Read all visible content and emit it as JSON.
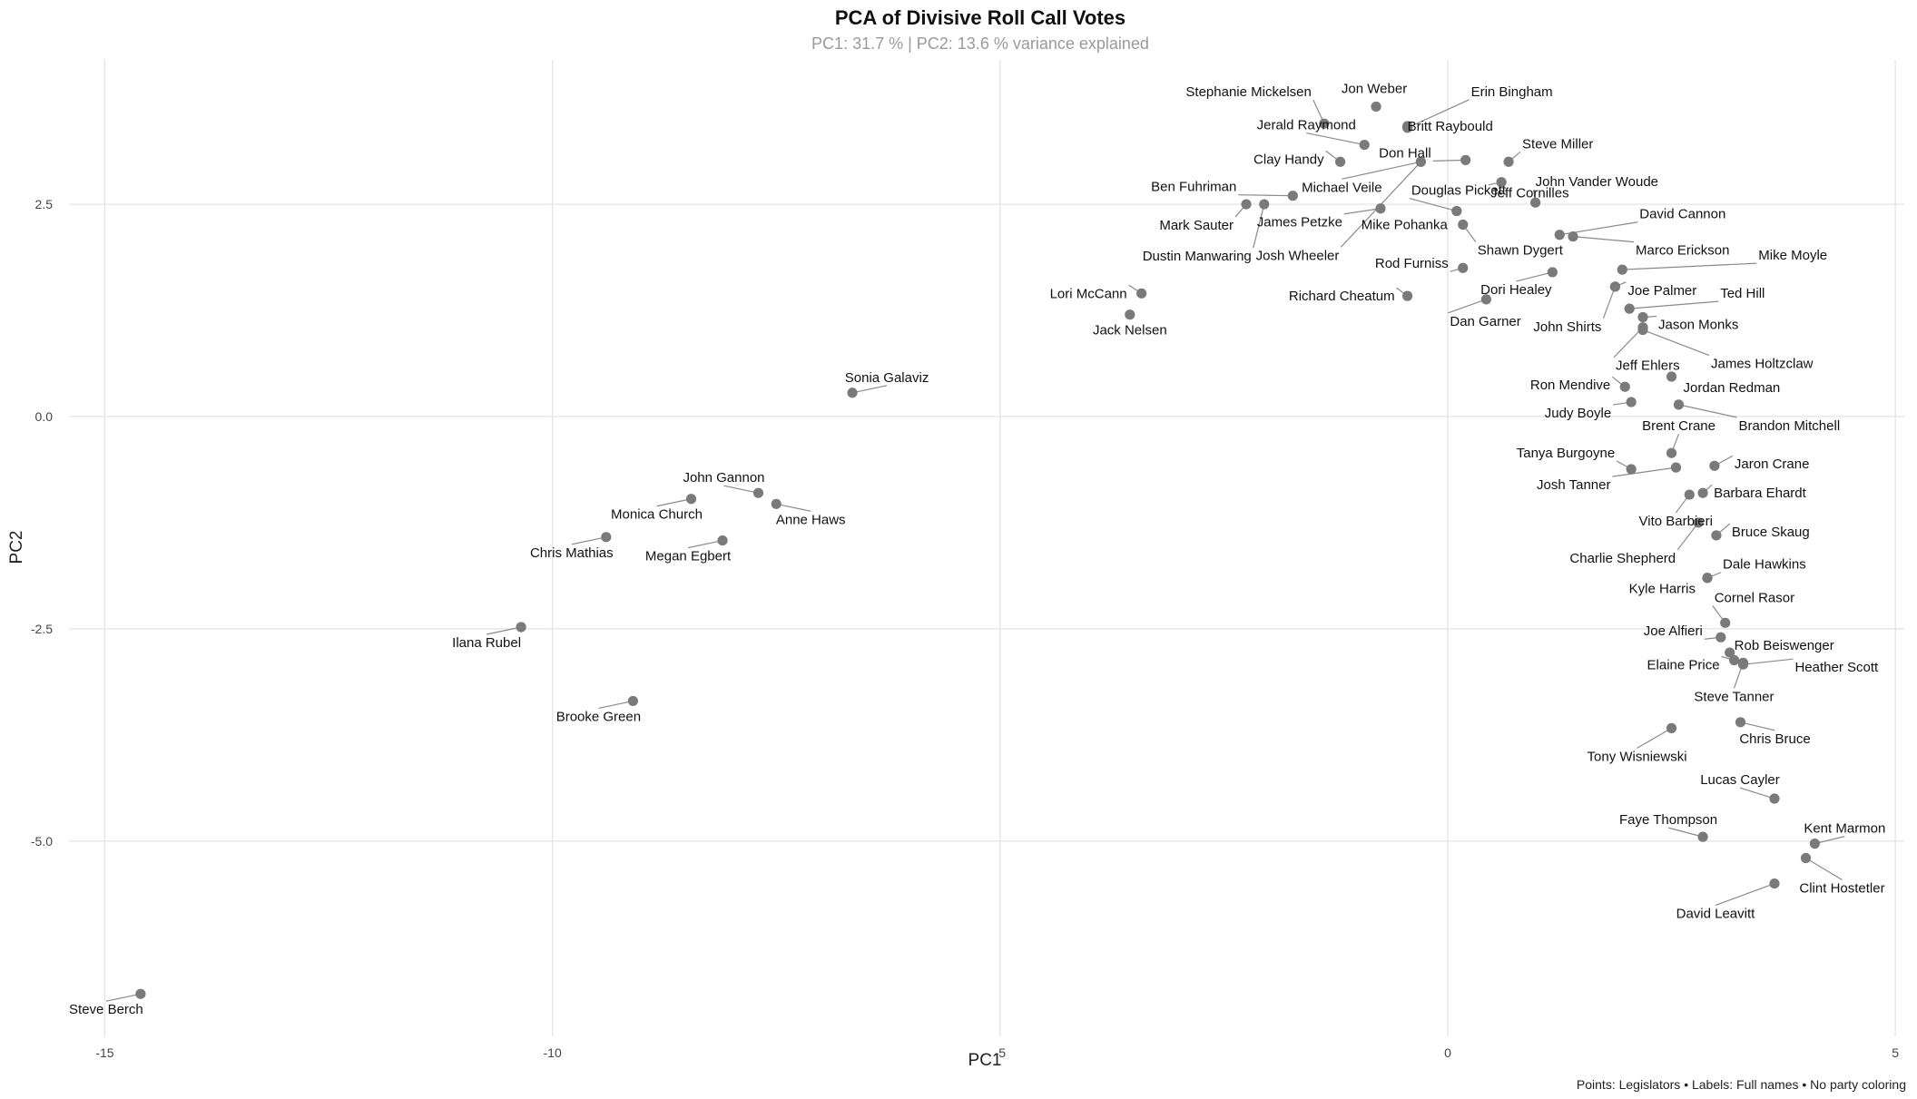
{
  "chart_data": {
    "type": "scatter",
    "title": "PCA of Divisive Roll Call Votes",
    "subtitle": "PC1: 31.7 % | PC2: 13.6 % variance explained",
    "xlabel": "PC1",
    "ylabel": "PC2",
    "caption": "Points: Legislators • Labels: Full names • No party coloring",
    "xlim": [
      -15.4,
      5.1
    ],
    "ylim": [
      -7.3,
      4.2
    ],
    "grid": true,
    "legend": "none",
    "point_color": "#7a7a7a",
    "x_ticks": [
      {
        "value": -15,
        "label": "-15"
      },
      {
        "value": -10,
        "label": "-10"
      },
      {
        "value": -5,
        "label": "-5"
      },
      {
        "value": 0,
        "label": "0"
      },
      {
        "value": 5,
        "label": "5"
      }
    ],
    "y_ticks": [
      {
        "value": 2.5,
        "label": "2.5"
      },
      {
        "value": 0,
        "label": "0.0"
      },
      {
        "value": -2.5,
        "label": "-2.5"
      },
      {
        "value": -5,
        "label": "-5.0"
      }
    ],
    "points": [
      {
        "label": "Steve Berch",
        "x": -14.6,
        "y": -6.8
      },
      {
        "label": "Ilana Rubel",
        "x": -10.35,
        "y": -2.48
      },
      {
        "label": "Brooke Green",
        "x": -9.1,
        "y": -3.35
      },
      {
        "label": "Chris Mathias",
        "x": -9.4,
        "y": -1.42
      },
      {
        "label": "Monica Church",
        "x": -8.45,
        "y": -0.97
      },
      {
        "label": "Megan Egbert",
        "x": -8.1,
        "y": -1.46
      },
      {
        "label": "John Gannon",
        "x": -7.7,
        "y": -0.9
      },
      {
        "label": "Anne Haws",
        "x": -7.5,
        "y": -1.03
      },
      {
        "label": "Sonia Galaviz",
        "x": -6.65,
        "y": 0.28
      },
      {
        "label": "Lori McCann",
        "x": -3.42,
        "y": 1.45
      },
      {
        "label": "Jack Nelsen",
        "x": -3.55,
        "y": 1.2
      },
      {
        "label": "Dustin Manwaring",
        "x": -2.05,
        "y": 2.5
      },
      {
        "label": "Mark Sauter",
        "x": -2.25,
        "y": 2.5
      },
      {
        "label": "Ben Fuhriman",
        "x": -1.73,
        "y": 2.6
      },
      {
        "label": "Stephanie Mickelsen",
        "x": -1.38,
        "y": 3.45
      },
      {
        "label": "Jon Weber",
        "x": -0.8,
        "y": 3.65
      },
      {
        "label": "Jerald Raymond",
        "x": -0.93,
        "y": 3.2
      },
      {
        "label": "Erin Bingham",
        "x": -0.45,
        "y": 3.4
      },
      {
        "label": "Britt Raybould",
        "x": -0.45,
        "y": 3.42
      },
      {
        "label": "Clay Handy",
        "x": -1.2,
        "y": 3.0
      },
      {
        "label": "Michael Veile",
        "x": -0.3,
        "y": 3.0
      },
      {
        "label": "James Petzke",
        "x": -0.75,
        "y": 2.45
      },
      {
        "label": "Josh Wheeler",
        "x": -0.3,
        "y": 3.0
      },
      {
        "label": "Don Hall",
        "x": 0.2,
        "y": 3.02
      },
      {
        "label": "Douglas Pickett",
        "x": 0.1,
        "y": 2.42
      },
      {
        "label": "Mike Pohanka",
        "x": 0.1,
        "y": 2.42
      },
      {
        "label": "Shawn Dygert",
        "x": 0.17,
        "y": 2.26
      },
      {
        "label": "Rod Furniss",
        "x": 0.17,
        "y": 1.75
      },
      {
        "label": "Richard Cheatum",
        "x": -0.45,
        "y": 1.42
      },
      {
        "label": "Dan Garner",
        "x": 0.43,
        "y": 1.38
      },
      {
        "label": "Dori Healey",
        "x": 1.17,
        "y": 1.7
      },
      {
        "label": "Steve Miller",
        "x": 0.68,
        "y": 3.0
      },
      {
        "label": "John Vander Woude",
        "x": 0.98,
        "y": 2.52
      },
      {
        "label": "Jeff Cornilles",
        "x": 0.6,
        "y": 2.76
      },
      {
        "label": "David Cannon",
        "x": 1.25,
        "y": 2.14
      },
      {
        "label": "Marco Erickson",
        "x": 1.4,
        "y": 2.12
      },
      {
        "label": "Mike Moyle",
        "x": 1.95,
        "y": 1.73
      },
      {
        "label": "Joe Palmer",
        "x": 1.87,
        "y": 1.53
      },
      {
        "label": "John Shirts",
        "x": 1.87,
        "y": 1.53
      },
      {
        "label": "Ted Hill",
        "x": 2.03,
        "y": 1.27
      },
      {
        "label": "Jason Monks",
        "x": 2.18,
        "y": 1.17
      },
      {
        "label": "Jeff Ehlers",
        "x": 2.18,
        "y": 1.05
      },
      {
        "label": "James Holtzclaw",
        "x": 2.18,
        "y": 1.02
      },
      {
        "label": "Ron Mendive",
        "x": 1.98,
        "y": 0.35
      },
      {
        "label": "Jordan Redman",
        "x": 2.5,
        "y": 0.47
      },
      {
        "label": "Judy Boyle",
        "x": 2.05,
        "y": 0.17
      },
      {
        "label": "Brandon Mitchell",
        "x": 2.58,
        "y": 0.14
      },
      {
        "label": "Brent Crane",
        "x": 2.5,
        "y": -0.43
      },
      {
        "label": "Tanya Burgoyne",
        "x": 2.05,
        "y": -0.62
      },
      {
        "label": "Josh Tanner",
        "x": 2.55,
        "y": -0.6
      },
      {
        "label": "Jaron Crane",
        "x": 2.98,
        "y": -0.58
      },
      {
        "label": "Vito Barbieri",
        "x": 2.7,
        "y": -0.92
      },
      {
        "label": "Barbara Ehardt",
        "x": 2.85,
        "y": -0.9
      },
      {
        "label": "Charlie Shepherd",
        "x": 2.8,
        "y": -1.25
      },
      {
        "label": "Bruce Skaug",
        "x": 3.0,
        "y": -1.4
      },
      {
        "label": "Dale Hawkins",
        "x": 2.9,
        "y": -1.9
      },
      {
        "label": "Kyle Harris",
        "x": 2.9,
        "y": -1.9
      },
      {
        "label": "Cornel Rasor",
        "x": 3.1,
        "y": -2.43
      },
      {
        "label": "Joe Alfieri",
        "x": 3.05,
        "y": -2.6
      },
      {
        "label": "Rob Beiswenger",
        "x": 3.15,
        "y": -2.78
      },
      {
        "label": "Elaine Price",
        "x": 3.2,
        "y": -2.87
      },
      {
        "label": "Heather Scott",
        "x": 3.3,
        "y": -2.92
      },
      {
        "label": "Steve Tanner",
        "x": 3.3,
        "y": -2.9
      },
      {
        "label": "Chris Bruce",
        "x": 3.27,
        "y": -3.6
      },
      {
        "label": "Tony Wisniewski",
        "x": 2.5,
        "y": -3.67
      },
      {
        "label": "Lucas Cayler",
        "x": 3.65,
        "y": -4.5
      },
      {
        "label": "Faye Thompson",
        "x": 2.85,
        "y": -4.95
      },
      {
        "label": "Kent Marmon",
        "x": 4.1,
        "y": -5.03
      },
      {
        "label": "Clint Hostetler",
        "x": 4.0,
        "y": -5.2
      },
      {
        "label": "David Leavitt",
        "x": 3.65,
        "y": -5.5
      }
    ]
  }
}
